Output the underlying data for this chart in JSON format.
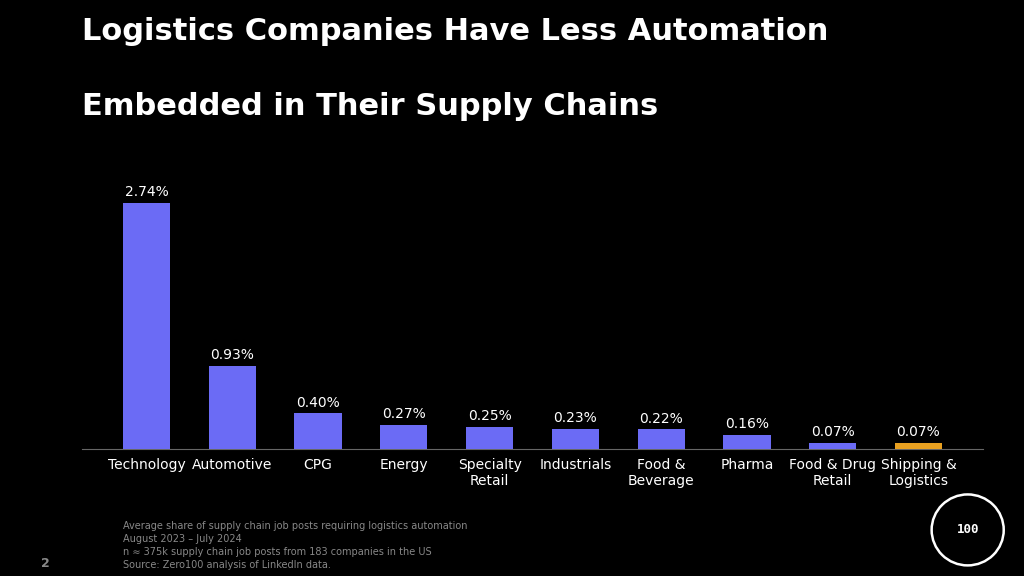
{
  "title_line1": "Logistics Companies Have Less Automation",
  "title_line2": "Embedded in Their Supply Chains",
  "categories": [
    "Technology",
    "Automotive",
    "CPG",
    "Energy",
    "Specialty\nRetail",
    "Industrials",
    "Food &\nBeverage",
    "Pharma",
    "Food & Drug\nRetail",
    "Shipping &\nLogistics"
  ],
  "values": [
    2.74,
    0.93,
    0.4,
    0.27,
    0.25,
    0.23,
    0.22,
    0.16,
    0.07,
    0.07
  ],
  "bar_colors": [
    "#6B6BF5",
    "#6B6BF5",
    "#6B6BF5",
    "#6B6BF5",
    "#6B6BF5",
    "#6B6BF5",
    "#6B6BF5",
    "#6B6BF5",
    "#6B6BF5",
    "#E8A020"
  ],
  "labels": [
    "2.74%",
    "0.93%",
    "0.40%",
    "0.27%",
    "0.25%",
    "0.23%",
    "0.22%",
    "0.16%",
    "0.07%",
    "0.07%"
  ],
  "background_color": "#000000",
  "text_color": "#ffffff",
  "title_fontsize": 22,
  "label_fontsize": 10,
  "xtick_fontsize": 10,
  "footnote": "Average share of supply chain job posts requiring logistics automation\nAugust 2023 – July 2024\nn ≈ 375k supply chain job posts from 183 companies in the US\nSource: Zero100 analysis of LinkedIn data.",
  "page_number": "2",
  "ylim": [
    0,
    3.2
  ]
}
